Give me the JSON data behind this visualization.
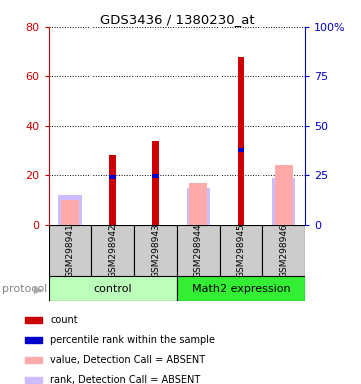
{
  "title": "GDS3436 / 1380230_at",
  "samples": [
    "GSM298941",
    "GSM298942",
    "GSM298943",
    "GSM298944",
    "GSM298945",
    "GSM298946"
  ],
  "count_values": [
    0,
    28,
    34,
    0,
    68,
    0
  ],
  "percentile_tops": [
    0,
    20,
    20.5,
    0,
    31,
    0
  ],
  "absent_value_values": [
    10,
    0,
    0,
    17,
    0,
    24
  ],
  "absent_rank_values": [
    12,
    0,
    0,
    15,
    0,
    19
  ],
  "left_yaxis_ticks": [
    0,
    20,
    40,
    60,
    80
  ],
  "right_yaxis_ticks": [
    0,
    25,
    50,
    75,
    100
  ],
  "left_ylim": [
    0,
    80
  ],
  "right_ylim": [
    0,
    100
  ],
  "color_count": "#cc0000",
  "color_percentile": "#0000cc",
  "color_absent_value": "#ffaaaa",
  "color_absent_rank": "#ccbbff",
  "color_control_bg": "#bbffbb",
  "color_math2_bg": "#33ee33",
  "color_sample_bg": "#cccccc",
  "legend_labels": [
    "count",
    "percentile rank within the sample",
    "value, Detection Call = ABSENT",
    "rank, Detection Call = ABSENT"
  ],
  "group_label_control": "control",
  "group_label_math2": "Math2 expression",
  "protocol_label": "protocol"
}
